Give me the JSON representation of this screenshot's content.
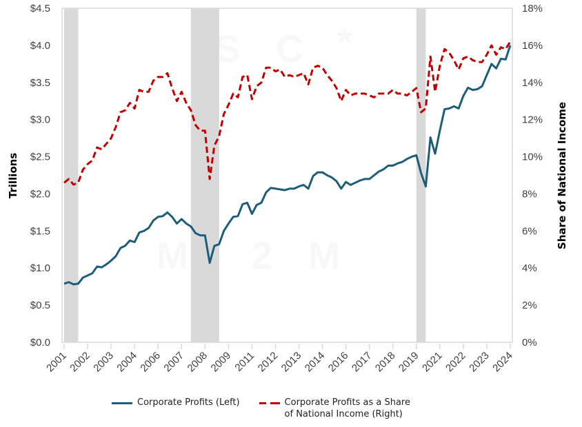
{
  "chart_data": {
    "type": "line",
    "title": "",
    "ylabel": "Trillions",
    "y2label": "Share of National Income",
    "ylim": [
      0,
      4.5
    ],
    "y2lim": [
      0,
      18
    ],
    "yticks": [
      "$0.0",
      "$0.5",
      "$1.0",
      "$1.5",
      "$2.0",
      "$2.5",
      "$3.0",
      "$3.5",
      "$4.0",
      "$4.5"
    ],
    "y2ticks": [
      "0%",
      "2%",
      "4%",
      "6%",
      "8%",
      "10%",
      "12%",
      "14%",
      "16%",
      "18%"
    ],
    "x_frequency": "quarterly",
    "x_start": "2001 Q1",
    "x_end": "2024 Q4",
    "xtick_every_quarters": 5,
    "xticks": [
      "2001",
      "2002",
      "2003",
      "2004",
      "2006",
      "2007",
      "2008",
      "2009",
      "2011",
      "2012",
      "2013",
      "2014",
      "2016",
      "2017",
      "2018",
      "2019",
      "2021",
      "2022",
      "2023",
      "2024"
    ],
    "recessions_quarter_index": [
      [
        0,
        3
      ],
      [
        27,
        33
      ],
      [
        75,
        77
      ]
    ],
    "grid": false,
    "legend_position": "bottom",
    "series": [
      {
        "name": "Corporate Profits (Left)",
        "axis": "left",
        "style": "solid",
        "color": "#1c5d7a",
        "values": [
          0.79,
          0.81,
          0.78,
          0.79,
          0.87,
          0.9,
          0.93,
          1.02,
          1.01,
          1.05,
          1.1,
          1.16,
          1.27,
          1.3,
          1.37,
          1.35,
          1.48,
          1.5,
          1.54,
          1.64,
          1.69,
          1.7,
          1.75,
          1.69,
          1.6,
          1.66,
          1.6,
          1.56,
          1.47,
          1.44,
          1.44,
          1.07,
          1.3,
          1.32,
          1.5,
          1.6,
          1.69,
          1.7,
          1.86,
          1.88,
          1.73,
          1.85,
          1.88,
          2.02,
          2.08,
          2.07,
          2.06,
          2.05,
          2.07,
          2.07,
          2.1,
          2.12,
          2.07,
          2.24,
          2.29,
          2.29,
          2.25,
          2.22,
          2.17,
          2.07,
          2.16,
          2.12,
          2.15,
          2.18,
          2.2,
          2.2,
          2.25,
          2.3,
          2.33,
          2.38,
          2.38,
          2.41,
          2.43,
          2.47,
          2.5,
          2.52,
          2.28,
          2.1,
          2.76,
          2.54,
          2.85,
          3.14,
          3.15,
          3.18,
          3.15,
          3.32,
          3.43,
          3.4,
          3.41,
          3.45,
          3.6,
          3.75,
          3.69,
          3.82,
          3.81,
          4.0
        ]
      },
      {
        "name": "Corporate Profits as a Share\nof National Income (Right)",
        "axis": "right",
        "style": "dashed",
        "color": "#c00000",
        "values": [
          8.6,
          8.8,
          8.5,
          8.6,
          9.3,
          9.6,
          9.8,
          10.5,
          10.4,
          10.7,
          11.0,
          11.6,
          12.4,
          12.5,
          12.9,
          12.6,
          13.6,
          13.5,
          13.5,
          14.1,
          14.3,
          14.3,
          14.5,
          13.7,
          13.0,
          13.5,
          12.9,
          12.5,
          11.7,
          11.4,
          11.4,
          8.8,
          10.6,
          11.1,
          12.3,
          12.8,
          13.4,
          13.2,
          14.3,
          14.4,
          13.1,
          13.8,
          14.0,
          14.8,
          14.8,
          14.6,
          14.7,
          14.3,
          14.4,
          14.3,
          14.4,
          14.5,
          13.9,
          14.8,
          14.9,
          14.8,
          14.4,
          14.1,
          13.7,
          13.0,
          13.6,
          13.3,
          13.4,
          13.4,
          13.4,
          13.3,
          13.2,
          13.4,
          13.4,
          13.4,
          13.6,
          13.4,
          13.4,
          13.3,
          13.5,
          13.7,
          12.4,
          12.6,
          15.4,
          13.5,
          14.9,
          15.8,
          15.6,
          15.2,
          14.7,
          15.3,
          15.4,
          15.2,
          15.1,
          15.1,
          15.5,
          16.0,
          15.5,
          15.9,
          15.8,
          16.2
        ]
      }
    ]
  },
  "legend": {
    "left_label": "Corporate Profits (Left)",
    "right_label": "Corporate Profits as a Share\nof National Income (Right)"
  },
  "watermark": [
    "M",
    "2",
    "M",
    "S",
    "C",
    "*"
  ],
  "colors": {
    "profits": "#1c5d7a",
    "share": "#c00000",
    "recession": "#d9d9d9",
    "frame": "#d9d9d9"
  }
}
